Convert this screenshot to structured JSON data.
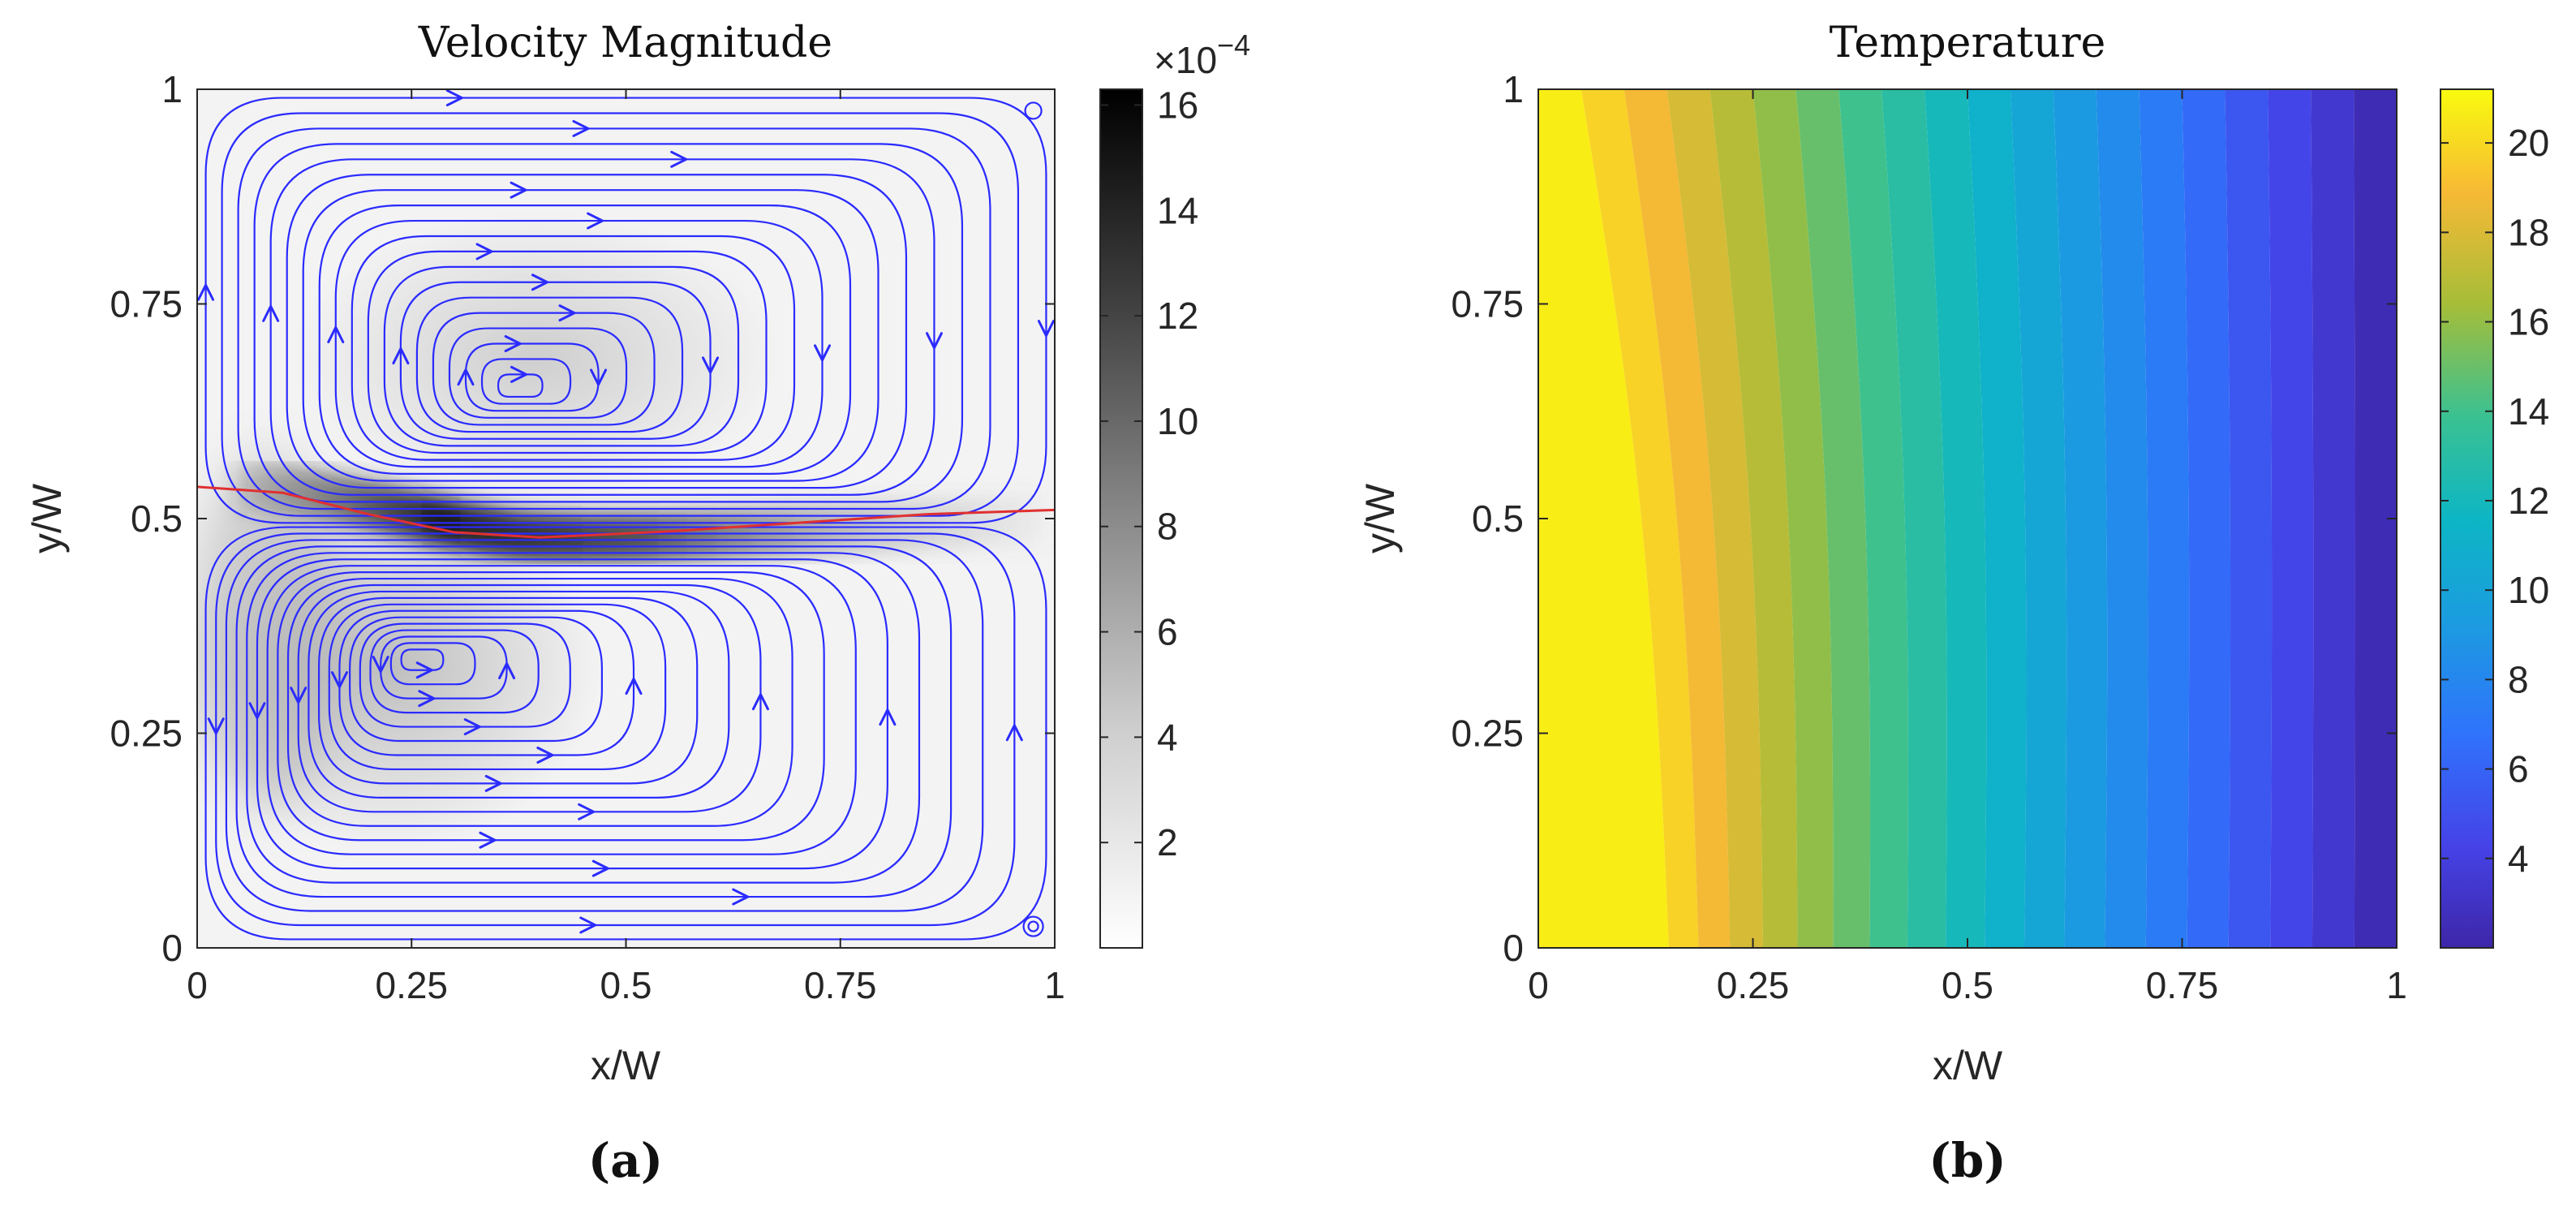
{
  "chart_data": [
    {
      "type": "heatmap",
      "title": "Velocity Magnitude",
      "xlabel": "x/W",
      "ylabel": "y/W",
      "xlim": [
        0,
        1
      ],
      "ylim": [
        0,
        1
      ],
      "xticks": [
        "0",
        "0.25",
        "0.5",
        "0.75",
        "1"
      ],
      "yticks": [
        "0",
        "0.25",
        "0.5",
        "0.75",
        "1"
      ],
      "colorbar": {
        "range": [
          0,
          16.3
        ],
        "ticks": [
          "2",
          "4",
          "6",
          "8",
          "10",
          "12",
          "14",
          "16"
        ],
        "multiplier_base": "×10",
        "multiplier_exp": "−4",
        "colormap": "gray-reversed"
      },
      "streamlines_color": "#2b2bff",
      "interface_line_color": "#e03030",
      "vortices": [
        {
          "x": 0.37,
          "y": 0.65,
          "rotation": "clockwise"
        },
        {
          "x": 0.25,
          "y": 0.34,
          "rotation": "counterclockwise"
        }
      ],
      "interface_line": [
        [
          0,
          0.537
        ],
        [
          0.1,
          0.53
        ],
        [
          0.2,
          0.505
        ],
        [
          0.3,
          0.484
        ],
        [
          0.4,
          0.478
        ],
        [
          0.55,
          0.485
        ],
        [
          0.7,
          0.495
        ],
        [
          0.85,
          0.505
        ],
        [
          1,
          0.51
        ]
      ],
      "panel_label": "(a)"
    },
    {
      "type": "heatmap",
      "title": "Temperature",
      "xlabel": "x/W",
      "ylabel": "y/W",
      "xlim": [
        0,
        1
      ],
      "ylim": [
        0,
        1
      ],
      "xticks": [
        "0",
        "0.25",
        "0.5",
        "0.75",
        "1"
      ],
      "yticks": [
        "0",
        "0.25",
        "0.5",
        "0.75",
        "1"
      ],
      "colorbar": {
        "range": [
          2,
          21.2
        ],
        "ticks": [
          "4",
          "6",
          "8",
          "10",
          "12",
          "14",
          "16",
          "18",
          "20"
        ],
        "colormap": "parula"
      },
      "contour_levels": 20,
      "panel_label": "(b)"
    }
  ]
}
